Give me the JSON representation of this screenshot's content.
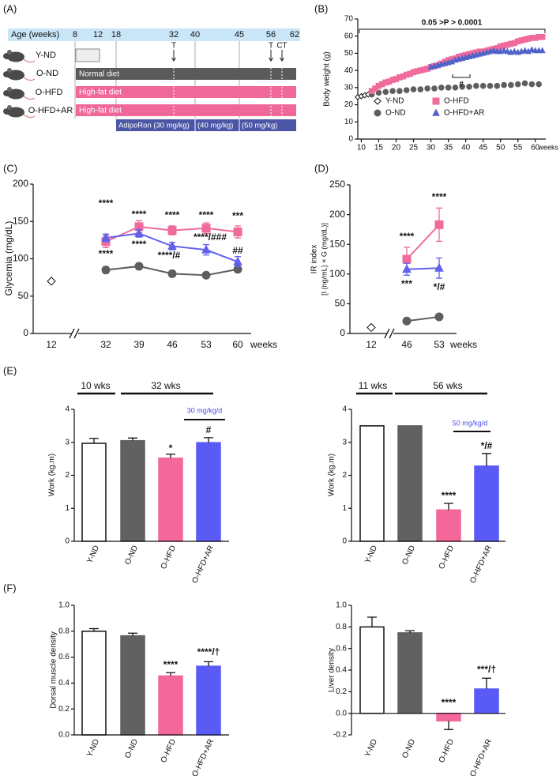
{
  "diagram": {
    "label": "(A)",
    "header": "Age (weeks)",
    "weeks": [
      8,
      12,
      18,
      32,
      40,
      45,
      56,
      62
    ],
    "markers": [
      "T",
      "T",
      "CT"
    ],
    "groups": [
      "Y-ND",
      "O-ND",
      "O-HFD",
      "O-HFD+AR"
    ],
    "diets": [
      "Normal diet",
      "High-fat diet",
      "High-fat diet"
    ],
    "treatment": [
      "AdipoRon (30 mg/kg)",
      "(40 mg/kg)",
      "(50 mg/kg)"
    ]
  },
  "chart_data": [
    {
      "type": "scatter",
      "label": "(B)",
      "ylabel": "Body weight (g)",
      "xlabel": "weeks",
      "annotations": [
        "0.05 >P > 0.0001",
        "#"
      ],
      "legend": "bottom",
      "xlim": [
        9,
        63
      ],
      "xticks": [
        10,
        15,
        20,
        25,
        30,
        35,
        40,
        45,
        50,
        55,
        60
      ],
      "ylim": [
        0,
        70
      ],
      "yticks": [
        0,
        10,
        20,
        30,
        40,
        50,
        60,
        70
      ],
      "series": [
        {
          "name": "Y-ND",
          "marker": "diamond",
          "color": "#ffffff",
          "x": [
            9,
            10,
            11,
            12
          ],
          "values": [
            24.5,
            25,
            25.5,
            26
          ]
        },
        {
          "name": "O-ND",
          "marker": "circle",
          "color": "#5e5e5e",
          "x": [
            13,
            15,
            17,
            19,
            21,
            23,
            25,
            27,
            29,
            31,
            33,
            35,
            37,
            39,
            41,
            43,
            45,
            47,
            49,
            51,
            53,
            55,
            57,
            59,
            61
          ],
          "values": [
            26,
            27,
            27.5,
            28,
            28,
            28.5,
            29,
            29,
            29.5,
            29.5,
            30,
            30,
            30,
            30.5,
            30.5,
            31,
            31,
            31,
            31,
            31.5,
            31.5,
            32,
            32.5,
            32,
            32
          ]
        },
        {
          "name": "O-HFD",
          "marker": "square",
          "color": "#f06a9c",
          "x": [
            13,
            14,
            15,
            16,
            17,
            18,
            19,
            20,
            21,
            22,
            23,
            24,
            25,
            26,
            27,
            28,
            29,
            30,
            31,
            32,
            33,
            34,
            35,
            36,
            37,
            38,
            39,
            40,
            41,
            42,
            43,
            44,
            45,
            46,
            47,
            48,
            49,
            50,
            51,
            52,
            53,
            54,
            55,
            56,
            57,
            58,
            59,
            60,
            61,
            62
          ],
          "values": [
            28,
            29.5,
            31,
            32,
            33,
            33.5,
            34.5,
            35,
            36,
            36.5,
            37.5,
            38,
            39,
            39.5,
            40,
            40.5,
            41,
            42,
            42.5,
            43,
            44,
            45,
            46,
            46.5,
            47,
            48,
            48.5,
            49,
            49.5,
            50,
            50.5,
            51,
            51,
            51.5,
            52,
            52.5,
            53,
            54,
            54.5,
            55,
            55.5,
            56,
            57,
            57.5,
            58,
            58.5,
            59,
            59,
            59.5,
            59.5
          ]
        },
        {
          "name": "O-HFD+AR",
          "marker": "triangle",
          "color": "#4f63c9",
          "x": [
            30,
            31,
            32,
            33,
            34,
            35,
            36,
            37,
            38,
            39,
            40,
            41,
            42,
            43,
            44,
            45,
            46,
            47,
            48,
            49,
            50,
            51,
            52,
            53,
            54,
            55,
            56,
            57,
            58,
            59,
            60,
            61,
            62
          ],
          "values": [
            42,
            42.5,
            43,
            43.5,
            44,
            44.5,
            45,
            46,
            46.5,
            47,
            47.5,
            48,
            48.5,
            49,
            49.5,
            50,
            50.5,
            51,
            51.5,
            51,
            51,
            51.5,
            51,
            50.5,
            51,
            50.5,
            51,
            51.5,
            51,
            52,
            51.5,
            51.5,
            51.5
          ]
        }
      ]
    },
    {
      "type": "line",
      "label": "(C)",
      "ylabel": "Glycemia (mg/dL)",
      "xlabel": "weeks",
      "categories": [
        "12",
        "32",
        "39",
        "46",
        "53",
        "60"
      ],
      "ylim": [
        0,
        200
      ],
      "yticks": [
        0,
        50,
        100,
        150,
        200
      ],
      "annotations": [
        "****",
        "****",
        "****",
        "****",
        "****",
        "****/#",
        "****",
        "****/###",
        "***",
        "##"
      ],
      "series": [
        {
          "name": "Y-ND",
          "marker": "diamond",
          "color": "#ffffff",
          "values": [
            70,
            null,
            null,
            null,
            null,
            null
          ]
        },
        {
          "name": "O-ND",
          "marker": "circle",
          "color": "#5e5e5e",
          "values": [
            null,
            85,
            90,
            80,
            78,
            86
          ],
          "errors": [
            null,
            4,
            4,
            4,
            3,
            4
          ]
        },
        {
          "name": "O-HFD",
          "marker": "square",
          "color": "#f06a9c",
          "values": [
            null,
            123,
            143,
            138,
            141,
            136
          ],
          "errors": [
            null,
            8,
            8,
            6,
            7,
            8
          ]
        },
        {
          "name": "O-HFD+AR",
          "marker": "triangle",
          "color": "#6161ee",
          "values": [
            null,
            128,
            134,
            117,
            112,
            96
          ],
          "errors": [
            null,
            5,
            5,
            5,
            7,
            7
          ]
        }
      ]
    },
    {
      "type": "line",
      "label": "(D)",
      "ylabel": [
        "IR index",
        "[I (ng/mL) × G (mg/dL)]"
      ],
      "xlabel": "weeks",
      "categories": [
        "12",
        "46",
        "53"
      ],
      "ylim": [
        0,
        250
      ],
      "yticks": [
        0,
        50,
        100,
        150,
        200,
        250
      ],
      "annotations": [
        "****",
        "***",
        "****",
        "*/#"
      ],
      "series": [
        {
          "name": "Y-ND",
          "marker": "diamond",
          "color": "#ffffff",
          "values": [
            10,
            null,
            null
          ]
        },
        {
          "name": "O-ND",
          "marker": "circle",
          "color": "#5e5e5e",
          "values": [
            null,
            21,
            28
          ],
          "errors": [
            null,
            2,
            3
          ]
        },
        {
          "name": "O-HFD",
          "marker": "square",
          "color": "#f06a9c",
          "values": [
            null,
            125,
            183
          ],
          "errors": [
            null,
            20,
            28
          ]
        },
        {
          "name": "O-HFD+AR",
          "marker": "triangle",
          "color": "#6161ee",
          "values": [
            null,
            108,
            110
          ],
          "errors": [
            null,
            10,
            17
          ]
        }
      ]
    },
    {
      "type": "bar",
      "label": "(E)",
      "ylabel": "Work (kg.m)",
      "groups": [
        "10 wks",
        "32 wks"
      ],
      "categories": [
        "Y-ND",
        "O-ND",
        "O-HFD",
        "O-HFD+AR"
      ],
      "values": [
        2.97,
        3.05,
        2.52,
        2.99
      ],
      "errors": [
        0.15,
        0.08,
        0.12,
        0.15
      ],
      "colors": [
        "#ffffff",
        "#616161",
        "#f4679a",
        "#5a5af5"
      ],
      "ylim": [
        0,
        4
      ],
      "yticks": [
        0,
        1,
        2,
        3,
        4
      ],
      "annotations": [
        "*",
        "#",
        "30 mg/kg/d"
      ]
    },
    {
      "type": "bar",
      "ylabel": "Work (kg.m)",
      "groups": [
        "11 wks",
        "56 wks"
      ],
      "categories": [
        "Y-ND",
        "O-ND",
        "O-HFD",
        "O-HFD+AR"
      ],
      "values": [
        3.5,
        3.5,
        0.95,
        2.28
      ],
      "errors": [
        null,
        null,
        0.2,
        0.38
      ],
      "colors": [
        "#ffffff",
        "#616161",
        "#f4679a",
        "#5a5af5"
      ],
      "ylim": [
        0,
        4
      ],
      "yticks": [
        0,
        1,
        2,
        3,
        4
      ],
      "annotations": [
        "****",
        "*/#",
        "50 mg/kg/d"
      ]
    },
    {
      "type": "bar",
      "label": "(F)",
      "ylabel": "Dorsal muscle density",
      "categories": [
        "Y-ND",
        "O-ND",
        "O-HFD",
        "O-HFD+AR"
      ],
      "values": [
        0.8,
        0.765,
        0.455,
        0.53
      ],
      "errors": [
        0.02,
        0.02,
        0.025,
        0.035
      ],
      "colors": [
        "#ffffff",
        "#616161",
        "#f4679a",
        "#5a5af5"
      ],
      "ylim": [
        0,
        1
      ],
      "yticks": [
        {
          "value": 0,
          "label": "0.0"
        },
        0.2,
        0.4,
        0.6,
        0.8,
        {
          "value": 1,
          "label": "1.0"
        }
      ],
      "annotations": [
        "****",
        "****/†"
      ]
    },
    {
      "type": "bar",
      "ylabel": "Liver density",
      "categories": [
        "Y-ND",
        "O-ND",
        "O-HFD",
        "O-HFD+AR"
      ],
      "values": [
        0.8,
        0.745,
        -0.07,
        0.225
      ],
      "errors": [
        0.09,
        0.02,
        0.08,
        0.1
      ],
      "colors": [
        "#ffffff",
        "#616161",
        "#f4679a",
        "#5a5af5"
      ],
      "ylim": [
        -0.2,
        1
      ],
      "yticks": [
        -0.2,
        {
          "value": 0,
          "label": "0.0"
        },
        0.2,
        0.4,
        0.6,
        0.8,
        {
          "value": 1,
          "label": "1.0"
        }
      ],
      "annotations": [
        "****",
        "***/†"
      ]
    }
  ]
}
